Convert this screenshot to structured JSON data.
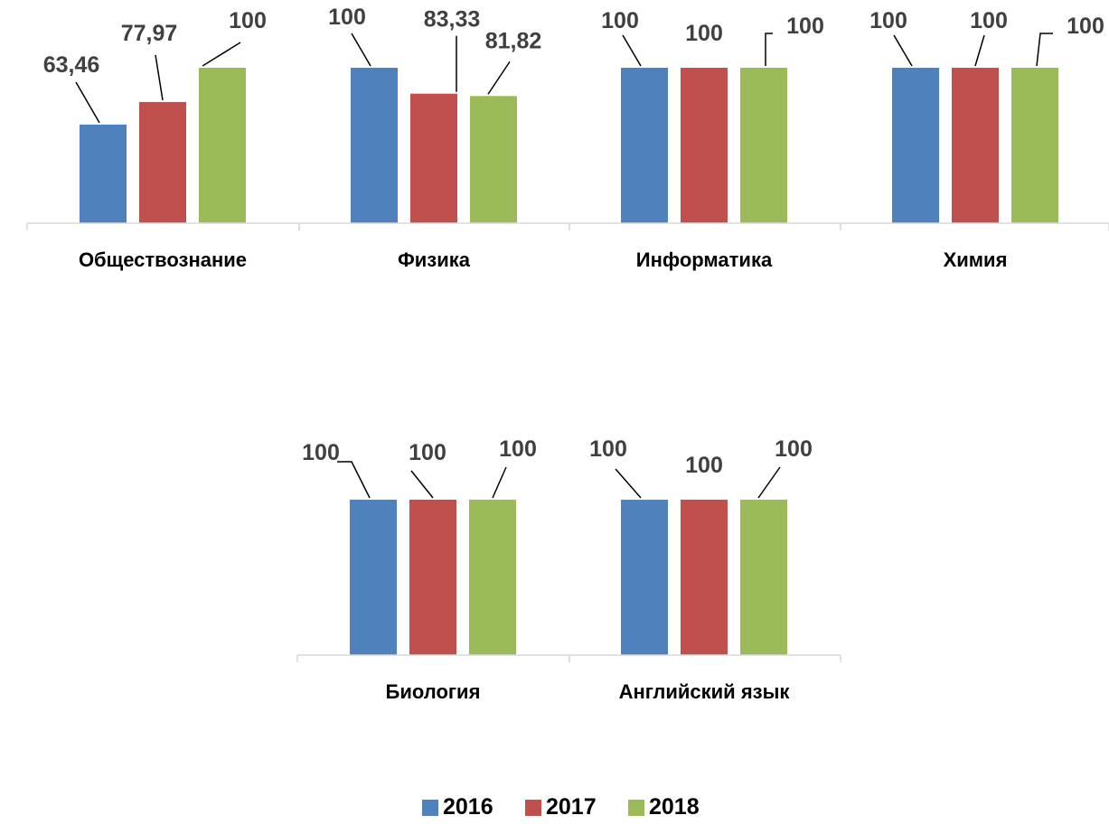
{
  "chart_data": {
    "type": "bar",
    "title": "",
    "xlabel": "",
    "ylabel": "",
    "ylim": [
      0,
      100
    ],
    "grid": false,
    "legend_position": "bottom",
    "categories": [
      "Обществознание",
      "Физика",
      "Информатика",
      "Химия",
      "Биология",
      "Английский язык"
    ],
    "series": [
      {
        "name": "2016",
        "color": "#4f81bd",
        "values": [
          63.46,
          100,
          100,
          100,
          100,
          100
        ],
        "labels": [
          "63,46",
          "100",
          "100",
          "100",
          "100",
          "100"
        ]
      },
      {
        "name": "2017",
        "color": "#c0504d",
        "values": [
          77.97,
          83.33,
          100,
          100,
          100,
          100
        ],
        "labels": [
          "77,97",
          "83,33",
          "100",
          "100",
          "100",
          "100"
        ]
      },
      {
        "name": "2018",
        "color": "#9bbb59",
        "values": [
          100,
          81.82,
          100,
          100,
          100,
          100
        ],
        "labels": [
          "100",
          "81,82",
          "100",
          "100",
          "100",
          "100"
        ]
      }
    ]
  }
}
